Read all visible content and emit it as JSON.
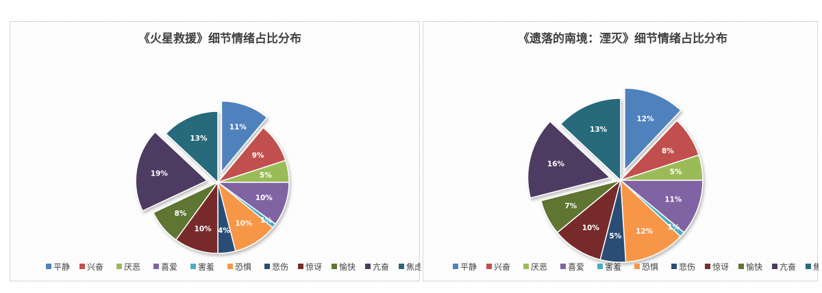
{
  "chart_data": [
    {
      "type": "pie",
      "title": "《火星救援》细节情绪占比分布",
      "categories": [
        "平静",
        "兴奋",
        "厌恶",
        "喜爱",
        "害羞",
        "恐惧",
        "悲伤",
        "惊讶",
        "愉快",
        "亢奋",
        "焦虑"
      ],
      "values": [
        11,
        9,
        5,
        10,
        1,
        10,
        4,
        10,
        8,
        19,
        13
      ],
      "labels": [
        "11%",
        "9%",
        "5%",
        "10%",
        "1%",
        "10%",
        "4%",
        "10%",
        "8%",
        "19%",
        "13%"
      ],
      "exploded": [
        "平静",
        "亢奋"
      ],
      "legend_position": "bottom"
    },
    {
      "type": "pie",
      "title": "《遗落的南境：湮灭》细节情绪占比分布",
      "categories": [
        "平静",
        "兴奋",
        "厌恶",
        "喜爱",
        "害羞",
        "恐惧",
        "悲伤",
        "惊讶",
        "愉快",
        "亢奋",
        "焦虑"
      ],
      "values": [
        12,
        8,
        5,
        11,
        1,
        12,
        5,
        10,
        7,
        16,
        13
      ],
      "labels": [
        "12%",
        "8%",
        "5%",
        "11%",
        "1%",
        "12%",
        "5%",
        "10%",
        "7%",
        "16%",
        "13%"
      ],
      "exploded": [
        "平静",
        "亢奋"
      ],
      "legend_position": "bottom"
    }
  ],
  "colors": [
    "#4f81bd",
    "#c0504d",
    "#9bbb59",
    "#8064a2",
    "#4bacc6",
    "#f79646",
    "#2c4d75",
    "#772c2a",
    "#5f7530",
    "#4d3b62",
    "#276a7c"
  ]
}
